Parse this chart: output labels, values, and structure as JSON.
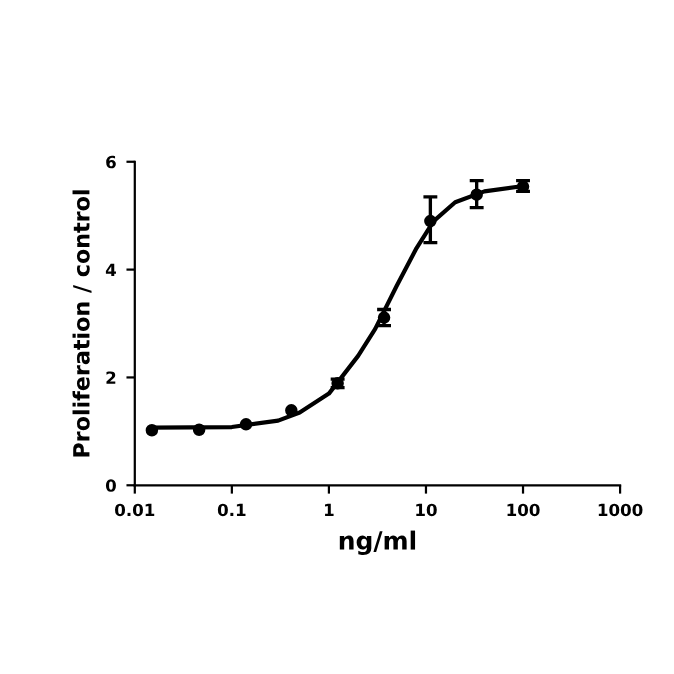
{
  "chart_data": {
    "type": "scatter",
    "xlabel": "ng/ml",
    "ylabel": "Proliferation / control",
    "log": "x",
    "xlim": [
      0.01,
      1000
    ],
    "xticks": [
      {
        "value": 0.01,
        "label": "0.01"
      },
      {
        "value": 0.1,
        "label": "0.1"
      },
      1,
      10,
      100,
      1000
    ],
    "ylim": [
      0,
      6
    ],
    "yticks": [
      0,
      2,
      4,
      6
    ],
    "grid": false,
    "marker": "circle",
    "series": [
      {
        "color": "#000000",
        "x": [
          0.015,
          0.046,
          0.14,
          0.41,
          1.23,
          3.7,
          11.1,
          33.3,
          100
        ],
        "values": [
          1.02,
          1.03,
          1.13,
          1.39,
          1.89,
          3.11,
          4.9,
          5.39,
          5.54
        ],
        "errors": [
          null,
          null,
          null,
          null,
          0.08,
          0.15,
          [
            4.5,
            5.35
          ],
          [
            5.15,
            5.65
          ],
          [
            5.45,
            5.65
          ]
        ]
      },
      {
        "type": "line",
        "color": "#000000",
        "marker": "none",
        "x": [
          0.015,
          0.1,
          0.3,
          0.5,
          1,
          2,
          3,
          5,
          8,
          12,
          20,
          40,
          100
        ],
        "values": [
          1.07,
          1.08,
          1.2,
          1.35,
          1.7,
          2.4,
          2.9,
          3.7,
          4.4,
          4.9,
          5.25,
          5.45,
          5.55
        ]
      }
    ]
  }
}
